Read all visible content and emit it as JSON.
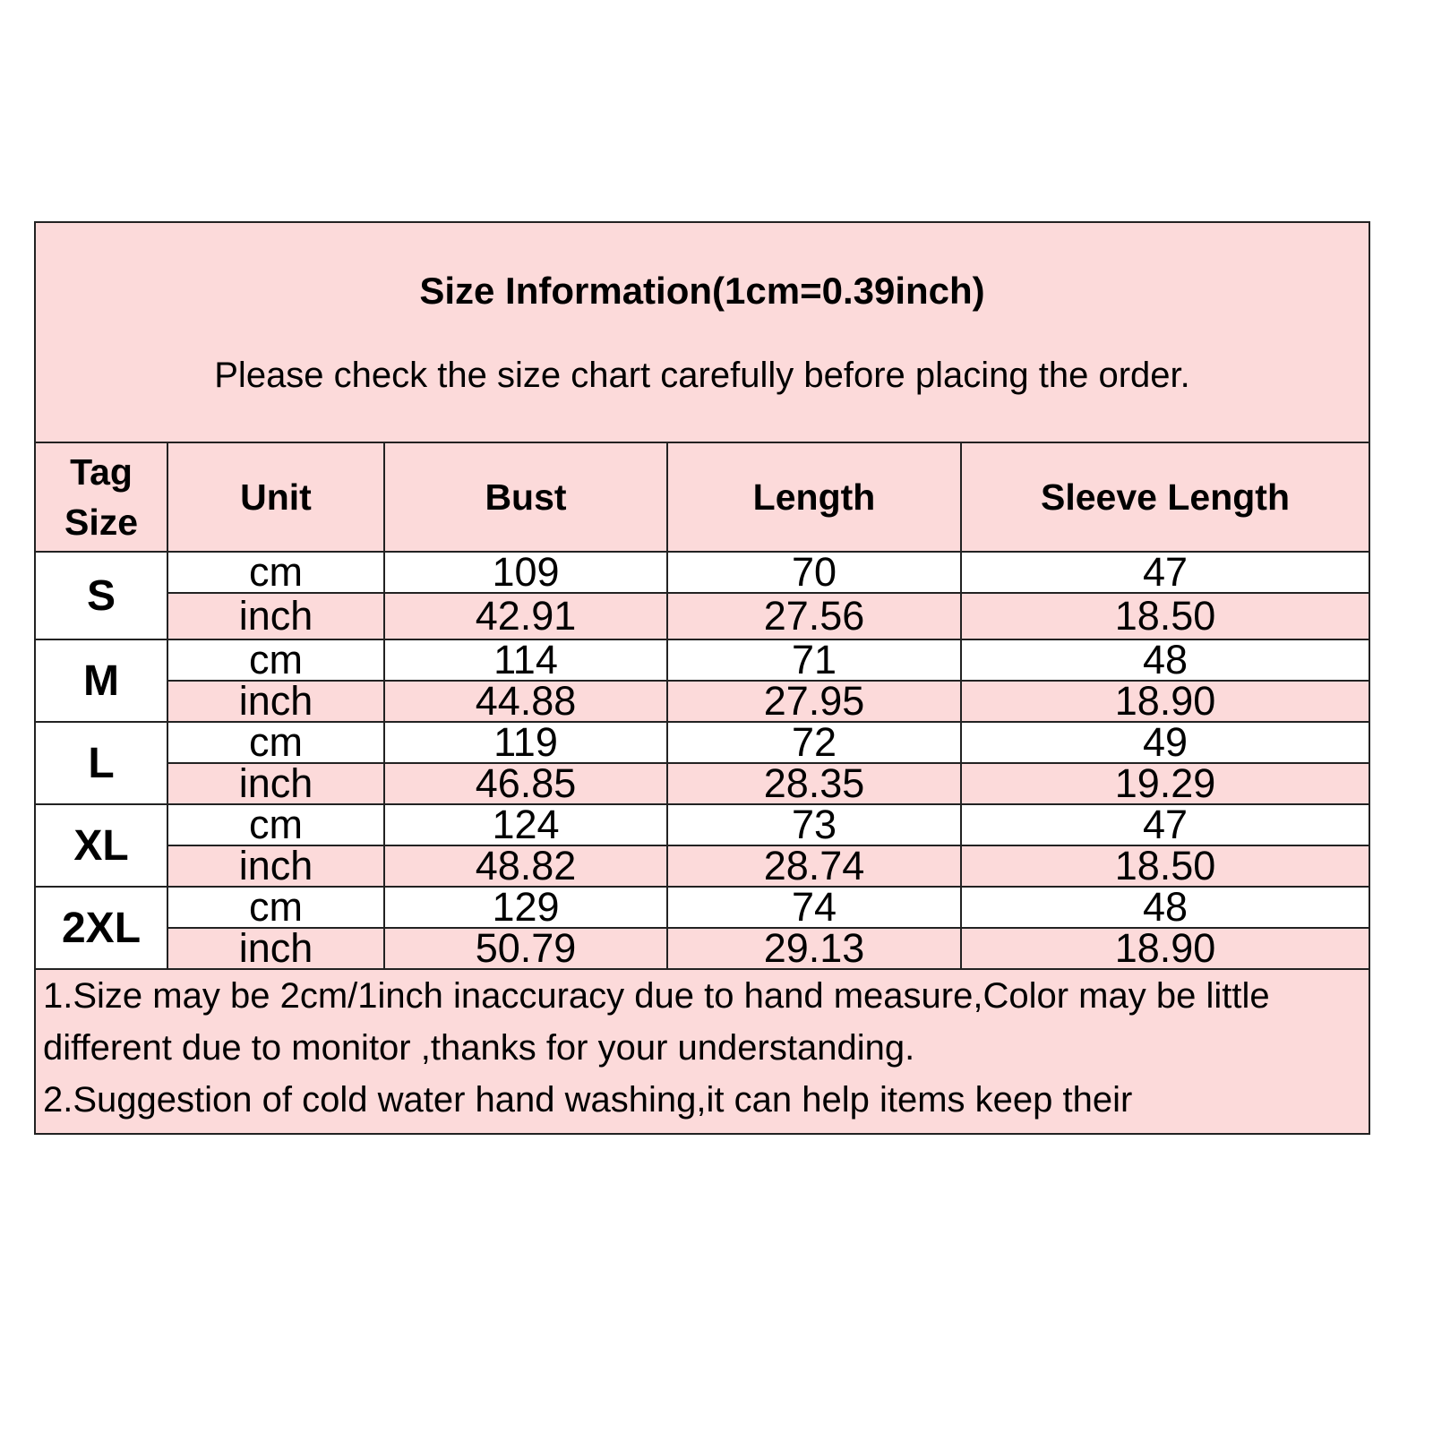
{
  "title": "Size Information(1cm=0.39inch)",
  "subtitle": "Please check the size chart carefully before placing the order.",
  "headers": [
    "Tag Size",
    "Unit",
    "Bust",
    "Length",
    "Sleeve Length"
  ],
  "colors": {
    "pink": "#fcdada",
    "white": "#ffffff",
    "border": "#222222"
  },
  "rows": [
    {
      "size": "S",
      "cm": {
        "unit": "cm",
        "bust": "109",
        "length": "70",
        "sleeve": "47"
      },
      "inch": {
        "unit": "inch",
        "bust": "42.91",
        "length": "27.56",
        "sleeve": "18.50"
      }
    },
    {
      "size": "M",
      "cm": {
        "unit": "cm",
        "bust": "114",
        "length": "71",
        "sleeve": "48"
      },
      "inch": {
        "unit": "inch",
        "bust": "44.88",
        "length": "27.95",
        "sleeve": "18.90"
      }
    },
    {
      "size": "L",
      "cm": {
        "unit": "cm",
        "bust": "119",
        "length": "72",
        "sleeve": "49"
      },
      "inch": {
        "unit": "inch",
        "bust": "46.85",
        "length": "28.35",
        "sleeve": "19.29"
      }
    },
    {
      "size": "XL",
      "cm": {
        "unit": "cm",
        "bust": "124",
        "length": "73",
        "sleeve": "47"
      },
      "inch": {
        "unit": "inch",
        "bust": "48.82",
        "length": "28.74",
        "sleeve": "18.50"
      }
    },
    {
      "size": "2XL",
      "cm": {
        "unit": "cm",
        "bust": "129",
        "length": "74",
        "sleeve": "48"
      },
      "inch": {
        "unit": "inch",
        "bust": "50.79",
        "length": "29.13",
        "sleeve": "18.90"
      }
    }
  ],
  "notes": [
    "1.Size may be 2cm/1inch inaccuracy due to hand measure,Color may be little different due to monitor ,thanks for your understanding.",
    "2.Suggestion of cold water hand washing,it can help items keep their"
  ]
}
